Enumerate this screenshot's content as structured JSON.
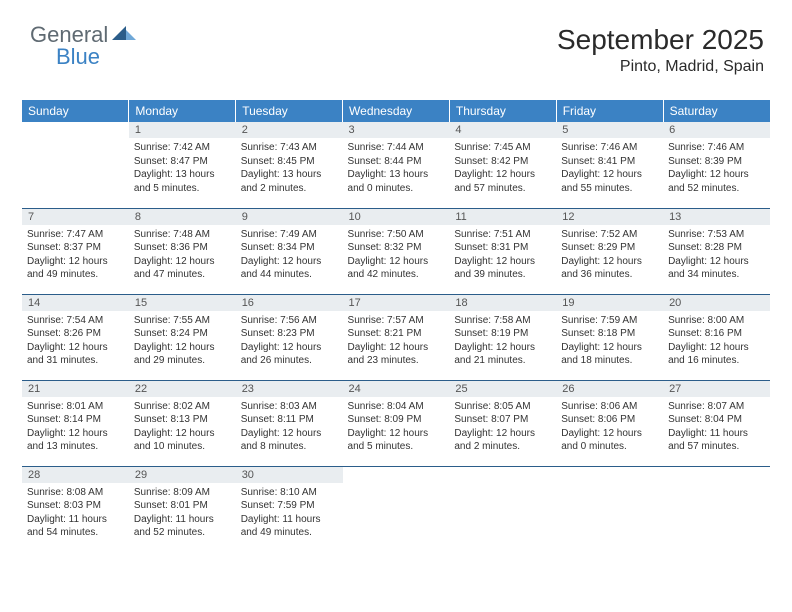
{
  "logo": {
    "text1": "General",
    "text2": "Blue"
  },
  "header": {
    "month_title": "September 2025",
    "location": "Pinto, Madrid, Spain"
  },
  "colors": {
    "header_bg": "#3b82c4",
    "header_text": "#ffffff",
    "daynum_bg": "#e9edf0",
    "daynum_text": "#555555",
    "row_border": "#2b5d8a",
    "body_text": "#333333"
  },
  "weekdays": [
    "Sunday",
    "Monday",
    "Tuesday",
    "Wednesday",
    "Thursday",
    "Friday",
    "Saturday"
  ],
  "weeks": [
    [
      {
        "n": "",
        "sunrise": "",
        "sunset": "",
        "daylight": ""
      },
      {
        "n": "1",
        "sunrise": "Sunrise: 7:42 AM",
        "sunset": "Sunset: 8:47 PM",
        "daylight": "Daylight: 13 hours and 5 minutes."
      },
      {
        "n": "2",
        "sunrise": "Sunrise: 7:43 AM",
        "sunset": "Sunset: 8:45 PM",
        "daylight": "Daylight: 13 hours and 2 minutes."
      },
      {
        "n": "3",
        "sunrise": "Sunrise: 7:44 AM",
        "sunset": "Sunset: 8:44 PM",
        "daylight": "Daylight: 13 hours and 0 minutes."
      },
      {
        "n": "4",
        "sunrise": "Sunrise: 7:45 AM",
        "sunset": "Sunset: 8:42 PM",
        "daylight": "Daylight: 12 hours and 57 minutes."
      },
      {
        "n": "5",
        "sunrise": "Sunrise: 7:46 AM",
        "sunset": "Sunset: 8:41 PM",
        "daylight": "Daylight: 12 hours and 55 minutes."
      },
      {
        "n": "6",
        "sunrise": "Sunrise: 7:46 AM",
        "sunset": "Sunset: 8:39 PM",
        "daylight": "Daylight: 12 hours and 52 minutes."
      }
    ],
    [
      {
        "n": "7",
        "sunrise": "Sunrise: 7:47 AM",
        "sunset": "Sunset: 8:37 PM",
        "daylight": "Daylight: 12 hours and 49 minutes."
      },
      {
        "n": "8",
        "sunrise": "Sunrise: 7:48 AM",
        "sunset": "Sunset: 8:36 PM",
        "daylight": "Daylight: 12 hours and 47 minutes."
      },
      {
        "n": "9",
        "sunrise": "Sunrise: 7:49 AM",
        "sunset": "Sunset: 8:34 PM",
        "daylight": "Daylight: 12 hours and 44 minutes."
      },
      {
        "n": "10",
        "sunrise": "Sunrise: 7:50 AM",
        "sunset": "Sunset: 8:32 PM",
        "daylight": "Daylight: 12 hours and 42 minutes."
      },
      {
        "n": "11",
        "sunrise": "Sunrise: 7:51 AM",
        "sunset": "Sunset: 8:31 PM",
        "daylight": "Daylight: 12 hours and 39 minutes."
      },
      {
        "n": "12",
        "sunrise": "Sunrise: 7:52 AM",
        "sunset": "Sunset: 8:29 PM",
        "daylight": "Daylight: 12 hours and 36 minutes."
      },
      {
        "n": "13",
        "sunrise": "Sunrise: 7:53 AM",
        "sunset": "Sunset: 8:28 PM",
        "daylight": "Daylight: 12 hours and 34 minutes."
      }
    ],
    [
      {
        "n": "14",
        "sunrise": "Sunrise: 7:54 AM",
        "sunset": "Sunset: 8:26 PM",
        "daylight": "Daylight: 12 hours and 31 minutes."
      },
      {
        "n": "15",
        "sunrise": "Sunrise: 7:55 AM",
        "sunset": "Sunset: 8:24 PM",
        "daylight": "Daylight: 12 hours and 29 minutes."
      },
      {
        "n": "16",
        "sunrise": "Sunrise: 7:56 AM",
        "sunset": "Sunset: 8:23 PM",
        "daylight": "Daylight: 12 hours and 26 minutes."
      },
      {
        "n": "17",
        "sunrise": "Sunrise: 7:57 AM",
        "sunset": "Sunset: 8:21 PM",
        "daylight": "Daylight: 12 hours and 23 minutes."
      },
      {
        "n": "18",
        "sunrise": "Sunrise: 7:58 AM",
        "sunset": "Sunset: 8:19 PM",
        "daylight": "Daylight: 12 hours and 21 minutes."
      },
      {
        "n": "19",
        "sunrise": "Sunrise: 7:59 AM",
        "sunset": "Sunset: 8:18 PM",
        "daylight": "Daylight: 12 hours and 18 minutes."
      },
      {
        "n": "20",
        "sunrise": "Sunrise: 8:00 AM",
        "sunset": "Sunset: 8:16 PM",
        "daylight": "Daylight: 12 hours and 16 minutes."
      }
    ],
    [
      {
        "n": "21",
        "sunrise": "Sunrise: 8:01 AM",
        "sunset": "Sunset: 8:14 PM",
        "daylight": "Daylight: 12 hours and 13 minutes."
      },
      {
        "n": "22",
        "sunrise": "Sunrise: 8:02 AM",
        "sunset": "Sunset: 8:13 PM",
        "daylight": "Daylight: 12 hours and 10 minutes."
      },
      {
        "n": "23",
        "sunrise": "Sunrise: 8:03 AM",
        "sunset": "Sunset: 8:11 PM",
        "daylight": "Daylight: 12 hours and 8 minutes."
      },
      {
        "n": "24",
        "sunrise": "Sunrise: 8:04 AM",
        "sunset": "Sunset: 8:09 PM",
        "daylight": "Daylight: 12 hours and 5 minutes."
      },
      {
        "n": "25",
        "sunrise": "Sunrise: 8:05 AM",
        "sunset": "Sunset: 8:07 PM",
        "daylight": "Daylight: 12 hours and 2 minutes."
      },
      {
        "n": "26",
        "sunrise": "Sunrise: 8:06 AM",
        "sunset": "Sunset: 8:06 PM",
        "daylight": "Daylight: 12 hours and 0 minutes."
      },
      {
        "n": "27",
        "sunrise": "Sunrise: 8:07 AM",
        "sunset": "Sunset: 8:04 PM",
        "daylight": "Daylight: 11 hours and 57 minutes."
      }
    ],
    [
      {
        "n": "28",
        "sunrise": "Sunrise: 8:08 AM",
        "sunset": "Sunset: 8:03 PM",
        "daylight": "Daylight: 11 hours and 54 minutes."
      },
      {
        "n": "29",
        "sunrise": "Sunrise: 8:09 AM",
        "sunset": "Sunset: 8:01 PM",
        "daylight": "Daylight: 11 hours and 52 minutes."
      },
      {
        "n": "30",
        "sunrise": "Sunrise: 8:10 AM",
        "sunset": "Sunset: 7:59 PM",
        "daylight": "Daylight: 11 hours and 49 minutes."
      },
      {
        "n": "",
        "sunrise": "",
        "sunset": "",
        "daylight": ""
      },
      {
        "n": "",
        "sunrise": "",
        "sunset": "",
        "daylight": ""
      },
      {
        "n": "",
        "sunrise": "",
        "sunset": "",
        "daylight": ""
      },
      {
        "n": "",
        "sunrise": "",
        "sunset": "",
        "daylight": ""
      }
    ]
  ]
}
